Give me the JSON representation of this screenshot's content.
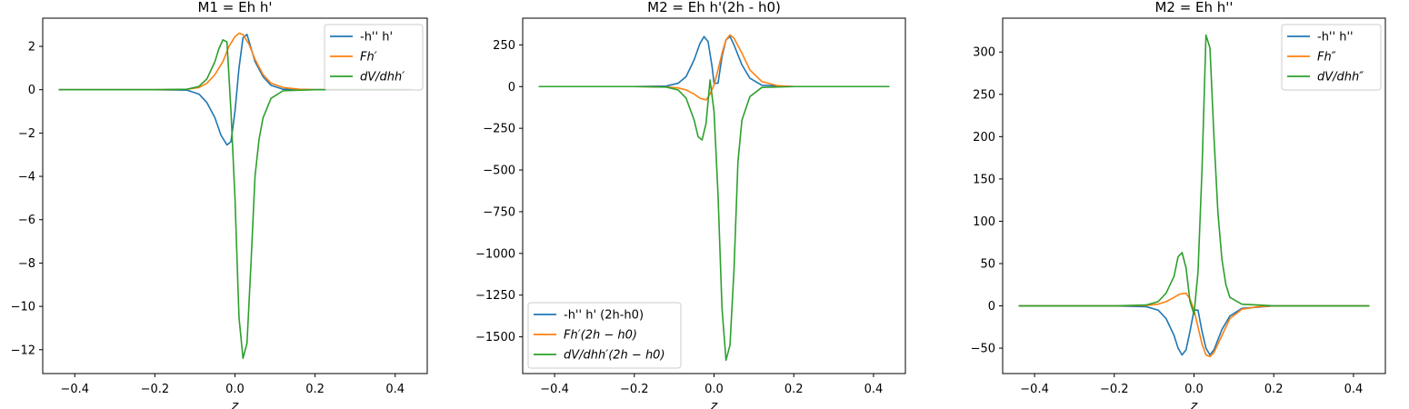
{
  "chart_data": [
    {
      "type": "line",
      "title": "M1 = Eh h'",
      "xlabel": "z",
      "ylabel": "",
      "xlim": [
        -0.48,
        0.48
      ],
      "ylim": [
        -13.1,
        3.3
      ],
      "xticks": [
        -0.4,
        -0.2,
        0.0,
        0.2,
        0.4
      ],
      "xtick_labels": [
        "−0.4",
        "−0.2",
        "0.0",
        "0.2",
        "0.4"
      ],
      "yticks": [
        2,
        0,
        -2,
        -4,
        -6,
        -8,
        -10,
        -12
      ],
      "ytick_labels": [
        "2",
        "0",
        "−2",
        "−4",
        "−6",
        "−8",
        "−10",
        "−12"
      ],
      "legend_position": "upper right",
      "grid": false,
      "series": [
        {
          "name": "-h'' h'",
          "color": "#1f77b4",
          "x": [
            -0.44,
            -0.2,
            -0.12,
            -0.09,
            -0.07,
            -0.05,
            -0.035,
            -0.02,
            -0.01,
            0.0,
            0.01,
            0.02,
            0.03,
            0.05,
            0.07,
            0.09,
            0.12,
            0.2,
            0.44
          ],
          "y": [
            0,
            0,
            -0.02,
            -0.2,
            -0.6,
            -1.3,
            -2.1,
            -2.55,
            -2.4,
            -1.0,
            1.0,
            2.4,
            2.55,
            1.3,
            0.6,
            0.2,
            0.02,
            0,
            0
          ]
        },
        {
          "name": "Fh'",
          "color": "#ff7f0e",
          "x": [
            -0.44,
            -0.2,
            -0.12,
            -0.09,
            -0.07,
            -0.05,
            -0.03,
            -0.015,
            0.0,
            0.01,
            0.02,
            0.035,
            0.05,
            0.07,
            0.09,
            0.12,
            0.16,
            0.2,
            0.44
          ],
          "y": [
            0,
            0,
            0.02,
            0.1,
            0.3,
            0.7,
            1.3,
            2.0,
            2.45,
            2.6,
            2.55,
            2.1,
            1.4,
            0.7,
            0.3,
            0.1,
            0.02,
            0,
            0
          ]
        },
        {
          "name": "dV/dhh'",
          "color": "#2ca02c",
          "x": [
            -0.44,
            -0.2,
            -0.12,
            -0.09,
            -0.07,
            -0.05,
            -0.04,
            -0.03,
            -0.02,
            -0.01,
            0.0,
            0.01,
            0.02,
            0.03,
            0.04,
            0.05,
            0.06,
            0.07,
            0.09,
            0.12,
            0.2,
            0.44
          ],
          "y": [
            0,
            0,
            0.02,
            0.15,
            0.5,
            1.3,
            1.9,
            2.3,
            2.2,
            -1.0,
            -5.0,
            -10.5,
            -12.4,
            -11.7,
            -8.0,
            -4.0,
            -2.3,
            -1.3,
            -0.4,
            -0.05,
            0,
            0
          ]
        }
      ]
    },
    {
      "type": "line",
      "title": "M2 = Eh h'(2h - h0)",
      "xlabel": "z",
      "ylabel": "",
      "xlim": [
        -0.48,
        0.48
      ],
      "ylim": [
        -1720,
        410
      ],
      "xticks": [
        -0.4,
        -0.2,
        0.0,
        0.2,
        0.4
      ],
      "xtick_labels": [
        "−0.4",
        "−0.2",
        "0.0",
        "0.2",
        "0.4"
      ],
      "yticks": [
        250,
        0,
        -250,
        -500,
        -750,
        -1000,
        -1250,
        -1500
      ],
      "ytick_labels": [
        "250",
        "0",
        "−250",
        "−500",
        "−750",
        "−1000",
        "−1250",
        "−1500"
      ],
      "legend_position": "lower left",
      "grid": false,
      "series": [
        {
          "name": "-h'' h' (2h-h0)",
          "color": "#1f77b4",
          "x": [
            -0.44,
            -0.2,
            -0.12,
            -0.09,
            -0.07,
            -0.05,
            -0.035,
            -0.025,
            -0.015,
            -0.005,
            0.0,
            0.01,
            0.02,
            0.03,
            0.04,
            0.05,
            0.07,
            0.09,
            0.12,
            0.2,
            0.44
          ],
          "y": [
            0,
            0,
            3,
            20,
            60,
            160,
            260,
            300,
            270,
            120,
            20,
            20,
            180,
            280,
            300,
            250,
            130,
            50,
            8,
            0,
            0
          ]
        },
        {
          "name": "Fh'(2h - h0)",
          "color": "#ff7f0e",
          "x": [
            -0.44,
            -0.2,
            -0.12,
            -0.09,
            -0.07,
            -0.05,
            -0.035,
            -0.02,
            -0.01,
            0.0,
            0.01,
            0.02,
            0.03,
            0.04,
            0.05,
            0.07,
            0.09,
            0.12,
            0.16,
            0.2,
            0.44
          ],
          "y": [
            0,
            0,
            -2,
            -8,
            -20,
            -45,
            -70,
            -80,
            -45,
            10,
            100,
            200,
            280,
            310,
            290,
            200,
            100,
            30,
            5,
            0,
            0
          ]
        },
        {
          "name": "dV/dhh'(2h - h0)",
          "color": "#2ca02c",
          "x": [
            -0.44,
            -0.2,
            -0.12,
            -0.09,
            -0.07,
            -0.05,
            -0.04,
            -0.03,
            -0.02,
            -0.01,
            0.0,
            0.01,
            0.02,
            0.03,
            0.04,
            0.05,
            0.06,
            0.07,
            0.09,
            0.12,
            0.2,
            0.44
          ],
          "y": [
            0,
            0,
            -3,
            -20,
            -70,
            -200,
            -300,
            -320,
            -220,
            40,
            -150,
            -650,
            -1330,
            -1640,
            -1550,
            -1100,
            -450,
            -200,
            -60,
            -5,
            0,
            0
          ]
        }
      ]
    },
    {
      "type": "line",
      "title": "M2 = Eh h''",
      "xlabel": "z",
      "ylabel": "",
      "xlim": [
        -0.48,
        0.48
      ],
      "ylim": [
        -80,
        340
      ],
      "xticks": [
        -0.4,
        -0.2,
        0.0,
        0.2,
        0.4
      ],
      "xtick_labels": [
        "−0.4",
        "−0.2",
        "0.0",
        "0.2",
        "0.4"
      ],
      "yticks": [
        300,
        250,
        200,
        150,
        100,
        50,
        0,
        -50
      ],
      "ytick_labels": [
        "300",
        "250",
        "200",
        "150",
        "100",
        "50",
        "0",
        "−50"
      ],
      "legend_position": "upper right",
      "grid": false,
      "series": [
        {
          "name": "-h'' h''",
          "color": "#1f77b4",
          "x": [
            -0.44,
            -0.2,
            -0.12,
            -0.09,
            -0.07,
            -0.05,
            -0.04,
            -0.03,
            -0.02,
            -0.01,
            0.0,
            0.01,
            0.02,
            0.03,
            0.04,
            0.05,
            0.07,
            0.09,
            0.12,
            0.2,
            0.44
          ],
          "y": [
            0,
            0,
            -1,
            -5,
            -15,
            -35,
            -50,
            -58,
            -52,
            -30,
            -5,
            -5,
            -30,
            -50,
            -58,
            -52,
            -28,
            -12,
            -3,
            0,
            0
          ]
        },
        {
          "name": "Fh''",
          "color": "#ff7f0e",
          "x": [
            -0.44,
            -0.2,
            -0.12,
            -0.09,
            -0.07,
            -0.05,
            -0.035,
            -0.02,
            -0.01,
            0.0,
            0.01,
            0.02,
            0.03,
            0.04,
            0.05,
            0.07,
            0.09,
            0.12,
            0.16,
            0.2,
            0.44
          ],
          "y": [
            0,
            0,
            0.5,
            2,
            5,
            10,
            14,
            15,
            8,
            -5,
            -25,
            -45,
            -58,
            -60,
            -55,
            -35,
            -15,
            -4,
            -1,
            0,
            0
          ]
        },
        {
          "name": "dV/dhh''",
          "color": "#2ca02c",
          "x": [
            -0.44,
            -0.2,
            -0.12,
            -0.09,
            -0.07,
            -0.05,
            -0.04,
            -0.03,
            -0.02,
            -0.01,
            0.0,
            0.01,
            0.02,
            0.03,
            0.04,
            0.05,
            0.06,
            0.07,
            0.08,
            0.09,
            0.12,
            0.2,
            0.44
          ],
          "y": [
            0,
            0,
            1,
            5,
            15,
            35,
            58,
            63,
            45,
            5,
            -10,
            40,
            160,
            320,
            305,
            200,
            110,
            55,
            25,
            10,
            2,
            0,
            0
          ]
        }
      ]
    }
  ]
}
